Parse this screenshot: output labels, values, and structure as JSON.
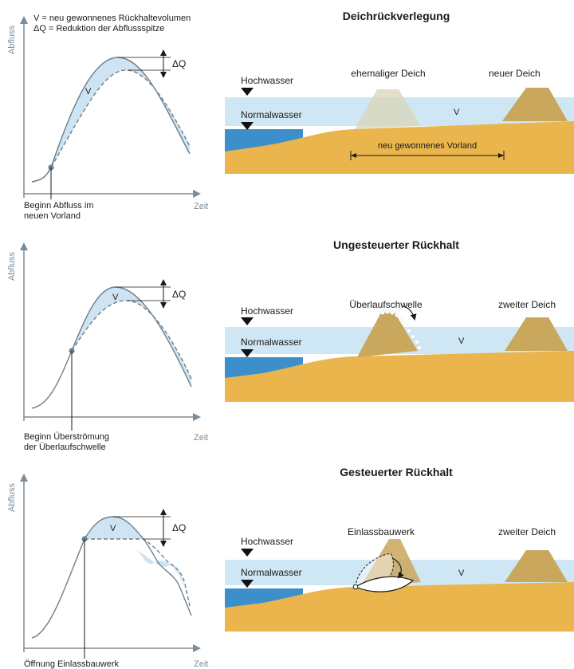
{
  "colors": {
    "water": "#cfe7f4",
    "deep_water": "#3c8fcb",
    "ground": "#e9b54c",
    "dike_old": "#d8d5b8",
    "dike": "#c9a75c",
    "fill": "#cfe4f3",
    "curve": "#6d7f8c",
    "axis": "#7a8c99"
  },
  "legend": {
    "line1": "V = neu gewonnenes Rückhaltevolumen",
    "line2": "ΔQ = Reduktion der Abflussspitze"
  },
  "panels": [
    {
      "title": "Deichrückverlegung",
      "ylabel": "Abfluss",
      "xlabel": "Zeit",
      "volume": "V",
      "delta": "ΔQ",
      "caption1": "Beginn Abfluss im",
      "caption2": "neuen Vorland",
      "high_water": "Hochwasser",
      "normal_water": "Normalwasser",
      "structure": "ehemaliger Deich",
      "dike": "neuer Deich",
      "floodplain": "neu gewonnenes Vorland",
      "section_volume": "V"
    },
    {
      "title": "Ungesteuerter Rückhalt",
      "ylabel": "Abfluss",
      "xlabel": "Zeit",
      "volume": "V",
      "delta": "ΔQ",
      "caption1": "Beginn Überströmung",
      "caption2": "der Überlaufschwelle",
      "high_water": "Hochwasser",
      "normal_water": "Normalwasser",
      "structure": "Überlaufschwelle",
      "dike": "zweiter Deich",
      "section_volume": "V"
    },
    {
      "title": "Gesteuerter Rückhalt",
      "ylabel": "Abfluss",
      "xlabel": "Zeit",
      "volume": "V",
      "delta": "ΔQ",
      "caption1": "Öffnung Einlassbauwerk",
      "high_water": "Hochwasser",
      "normal_water": "Normalwasser",
      "structure": "Einlassbauwerk",
      "dike": "zweiter Deich",
      "section_volume": "V"
    }
  ]
}
